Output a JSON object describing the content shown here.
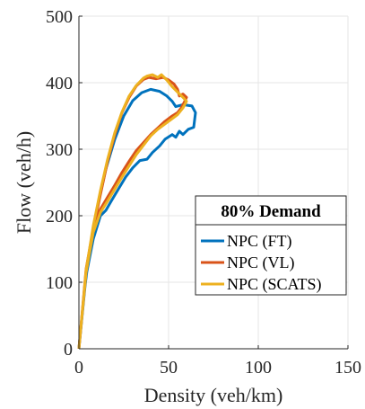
{
  "chart_data": {
    "type": "line",
    "title": "",
    "xlabel": "Density (veh/km)",
    "ylabel": "Flow (veh/h)",
    "xlim": [
      0,
      150
    ],
    "ylim": [
      0,
      500
    ],
    "x_ticks": [
      0,
      50,
      100,
      150
    ],
    "y_ticks": [
      0,
      100,
      200,
      300,
      400,
      500
    ],
    "x_tick_labels": [
      "0",
      "50",
      "100",
      "150"
    ],
    "y_tick_labels": [
      "0",
      "100",
      "200",
      "300",
      "400",
      "500"
    ],
    "grid": true,
    "legend": {
      "title": "80% Demand",
      "position": "lower-right"
    },
    "series": [
      {
        "name": "NPC (FT)",
        "color": "#0072BD",
        "points": [
          [
            0,
            0
          ],
          [
            4,
            110
          ],
          [
            8,
            165
          ],
          [
            12,
            200
          ],
          [
            15,
            208
          ],
          [
            18,
            222
          ],
          [
            22,
            240
          ],
          [
            26,
            258
          ],
          [
            30,
            272
          ],
          [
            34,
            283
          ],
          [
            38,
            285
          ],
          [
            41,
            295
          ],
          [
            45,
            305
          ],
          [
            48,
            315
          ],
          [
            52,
            322
          ],
          [
            54,
            318
          ],
          [
            56,
            327
          ],
          [
            58,
            322
          ],
          [
            61,
            330
          ],
          [
            64,
            333
          ],
          [
            65,
            355
          ],
          [
            63,
            365
          ],
          [
            58,
            367
          ],
          [
            54,
            364
          ],
          [
            52,
            372
          ],
          [
            49,
            380
          ],
          [
            45,
            387
          ],
          [
            40,
            390
          ],
          [
            35,
            385
          ],
          [
            30,
            373
          ],
          [
            25,
            350
          ],
          [
            20,
            315
          ],
          [
            15,
            270
          ],
          [
            10,
            210
          ],
          [
            6,
            150
          ],
          [
            3,
            85
          ],
          [
            0,
            0
          ]
        ]
      },
      {
        "name": "NPC (VL)",
        "color": "#D95319",
        "points": [
          [
            0,
            0
          ],
          [
            4,
            120
          ],
          [
            8,
            180
          ],
          [
            12,
            210
          ],
          [
            16,
            228
          ],
          [
            20,
            246
          ],
          [
            24,
            265
          ],
          [
            28,
            282
          ],
          [
            32,
            298
          ],
          [
            36,
            310
          ],
          [
            40,
            322
          ],
          [
            44,
            332
          ],
          [
            48,
            342
          ],
          [
            52,
            350
          ],
          [
            55,
            355
          ],
          [
            57,
            362
          ],
          [
            59,
            372
          ],
          [
            60,
            378
          ],
          [
            58,
            383
          ],
          [
            56,
            380
          ],
          [
            55,
            390
          ],
          [
            53,
            398
          ],
          [
            50,
            404
          ],
          [
            47,
            408
          ],
          [
            43,
            406
          ],
          [
            39,
            408
          ],
          [
            36,
            405
          ],
          [
            32,
            395
          ],
          [
            28,
            378
          ],
          [
            24,
            355
          ],
          [
            20,
            322
          ],
          [
            16,
            282
          ],
          [
            12,
            232
          ],
          [
            8,
            180
          ],
          [
            4,
            115
          ],
          [
            0,
            0
          ]
        ]
      },
      {
        "name": "NPC (SCATS)",
        "color": "#EDB120",
        "points": [
          [
            0,
            0
          ],
          [
            4,
            115
          ],
          [
            8,
            175
          ],
          [
            12,
            205
          ],
          [
            16,
            222
          ],
          [
            20,
            240
          ],
          [
            24,
            258
          ],
          [
            28,
            275
          ],
          [
            32,
            292
          ],
          [
            36,
            306
          ],
          [
            40,
            320
          ],
          [
            44,
            330
          ],
          [
            48,
            338
          ],
          [
            52,
            346
          ],
          [
            55,
            352
          ],
          [
            58,
            362
          ],
          [
            60,
            372
          ],
          [
            58,
            378
          ],
          [
            55,
            386
          ],
          [
            52,
            394
          ],
          [
            49,
            404
          ],
          [
            46,
            412
          ],
          [
            44,
            408
          ],
          [
            41,
            412
          ],
          [
            38,
            410
          ],
          [
            36,
            407
          ],
          [
            32,
            396
          ],
          [
            28,
            380
          ],
          [
            24,
            356
          ],
          [
            20,
            325
          ],
          [
            16,
            285
          ],
          [
            12,
            238
          ],
          [
            8,
            185
          ],
          [
            4,
            118
          ],
          [
            0,
            0
          ]
        ]
      }
    ]
  }
}
